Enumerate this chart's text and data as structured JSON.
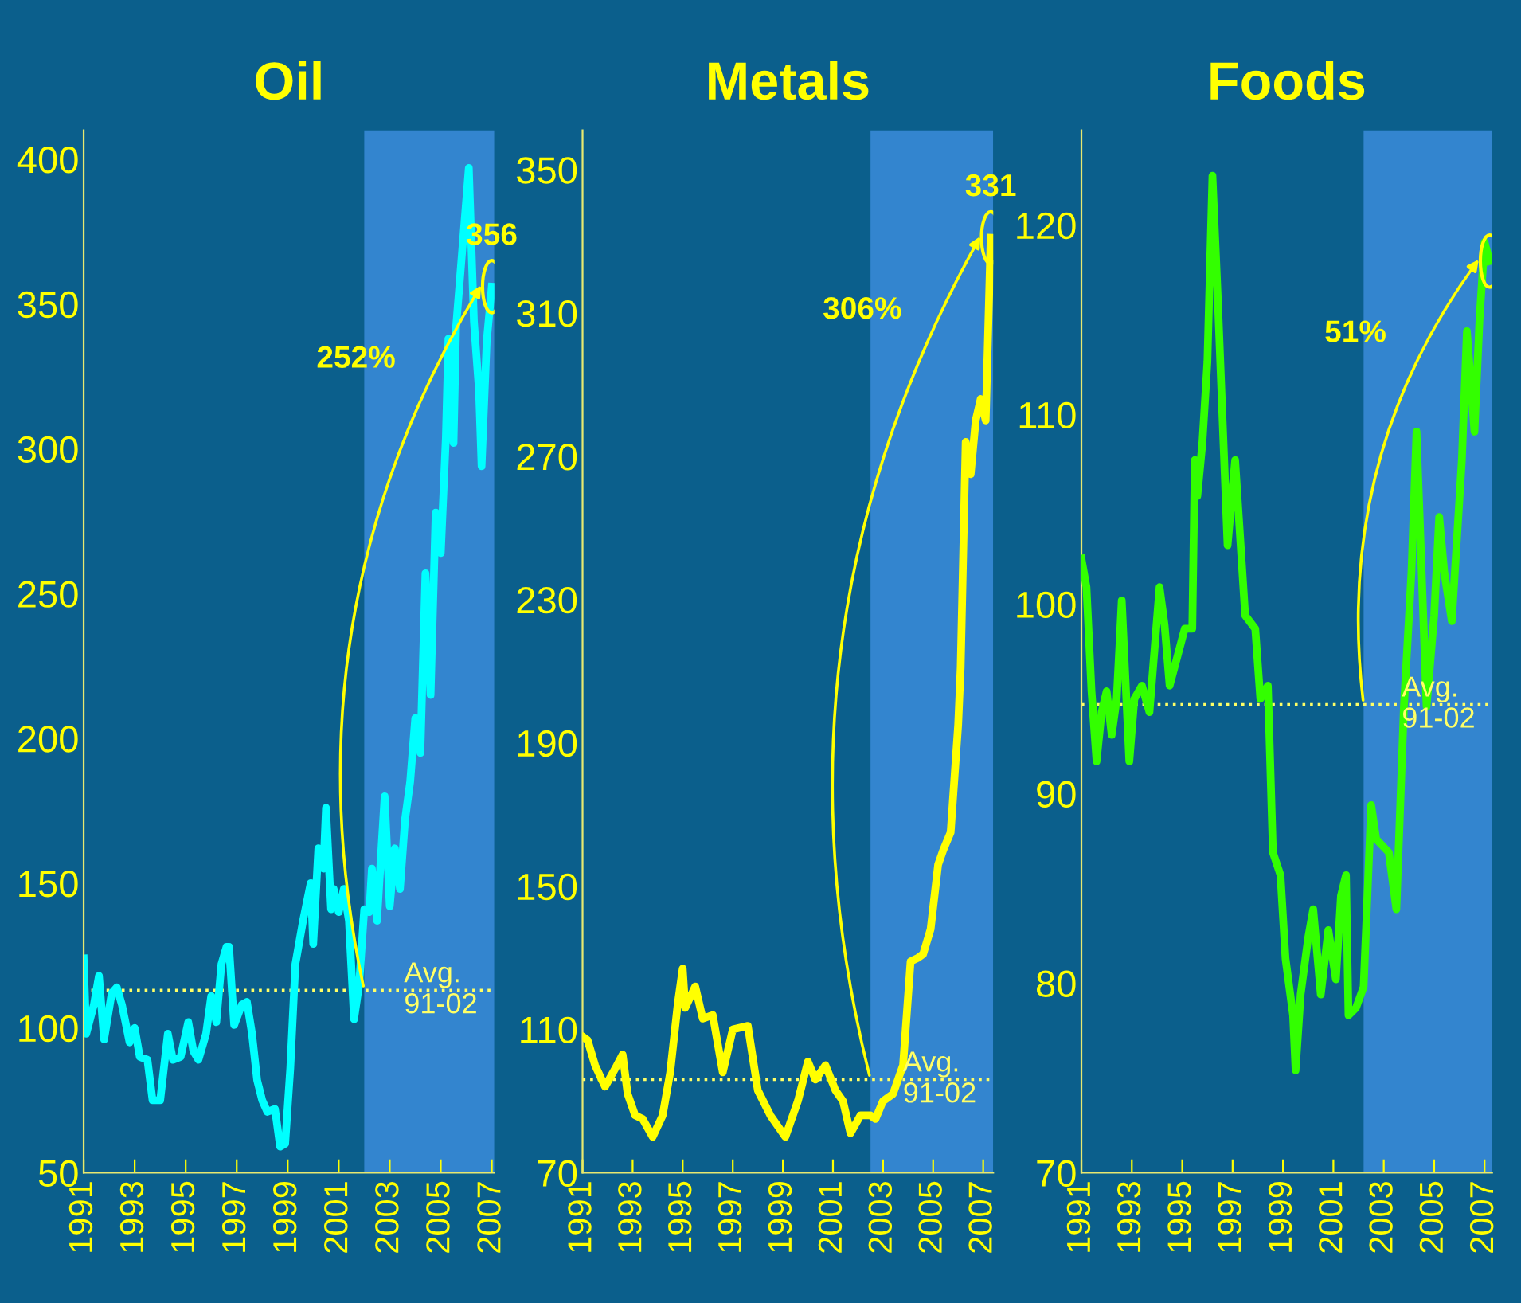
{
  "chart_data": [
    {
      "type": "line",
      "title": "Oil",
      "xlim": [
        1991,
        2007.1
      ],
      "ylim": [
        50,
        410
      ],
      "xticks": [
        1991,
        1993,
        1995,
        1997,
        1999,
        2001,
        2003,
        2005,
        2007
      ],
      "yticks": [
        50,
        100,
        150,
        200,
        250,
        300,
        350,
        400
      ],
      "x": [
        1991.0,
        1991.1,
        1991.4,
        1991.6,
        1991.8,
        1992.1,
        1992.3,
        1992.5,
        1992.8,
        1993.0,
        1993.2,
        1993.5,
        1993.7,
        1994.0,
        1994.3,
        1994.5,
        1994.8,
        1995.1,
        1995.3,
        1995.5,
        1995.8,
        1996.0,
        1996.2,
        1996.4,
        1996.6,
        1996.7,
        1996.9,
        1997.2,
        1997.4,
        1997.6,
        1997.8,
        1998.0,
        1998.2,
        1998.5,
        1998.7,
        1998.9,
        1999.1,
        1999.3,
        1999.6,
        1999.9,
        2000.0,
        2000.2,
        2000.4,
        2000.5,
        2000.7,
        2000.8,
        2001.0,
        2001.2,
        2001.4,
        2001.6,
        2001.8,
        2002.0,
        2002.2,
        2002.3,
        2002.5,
        2002.8,
        2003.0,
        2003.2,
        2003.4,
        2003.6,
        2003.8,
        2004.0,
        2004.2,
        2004.4,
        2004.6,
        2004.8,
        2005.0,
        2005.2,
        2005.3,
        2005.5,
        2005.6,
        2005.9,
        2006.1,
        2006.3,
        2006.5,
        2006.6,
        2006.8,
        2007.0
      ],
      "series": [
        {
          "color": "#00ffff",
          "values": [
            124,
            98,
            108,
            118,
            96,
            112,
            114,
            108,
            95,
            100,
            90,
            89,
            75,
            75,
            98,
            89,
            90,
            102,
            92,
            89,
            98,
            111,
            102,
            122,
            128,
            128,
            101,
            108,
            109,
            98,
            82,
            75,
            71,
            72,
            59,
            60,
            86,
            122,
            137,
            150,
            129,
            162,
            155,
            176,
            141,
            148,
            140,
            148,
            137,
            103,
            115,
            141,
            140,
            155,
            137,
            180,
            142,
            162,
            148,
            172,
            185,
            207,
            195,
            257,
            215,
            278,
            264,
            304,
            338,
            302,
            342,
            375,
            397,
            344,
            320,
            294,
            337,
            356
          ]
        }
      ],
      "bands": [
        {
          "axis": "x",
          "from": 2002.0,
          "to": 2007.1,
          "color": "#3d8fe0"
        }
      ],
      "ref_lines": [
        {
          "axis": "y",
          "value": 113,
          "label": "Avg.\n91-02",
          "color": "#ffff66",
          "line_style": "dotted"
        }
      ],
      "annotations": [
        {
          "text": "356",
          "x": 2007.0,
          "y": 356
        },
        "252%"
      ]
    },
    {
      "type": "line",
      "title": "Metals",
      "xlim": [
        1991,
        2007.4
      ],
      "ylim": [
        70,
        361
      ],
      "xticks": [
        1991,
        1993,
        1995,
        1997,
        1999,
        2001,
        2003,
        2005,
        2007
      ],
      "yticks": [
        70,
        110,
        150,
        190,
        230,
        270,
        310,
        350
      ],
      "x": [
        1991.0,
        1991.2,
        1991.5,
        1991.9,
        1992.3,
        1992.6,
        1992.8,
        1993.1,
        1993.4,
        1993.8,
        1994.2,
        1994.5,
        1994.8,
        1995.0,
        1995.1,
        1995.5,
        1995.8,
        1996.2,
        1996.6,
        1997.0,
        1997.6,
        1998.0,
        1998.5,
        1999.1,
        1999.6,
        2000.0,
        2000.3,
        2000.7,
        2001.1,
        2001.4,
        2001.7,
        2002.1,
        2002.5,
        2002.7,
        2003.0,
        2003.4,
        2003.8,
        2004.1,
        2004.4,
        2004.6,
        2004.9,
        2005.2,
        2005.4,
        2005.7,
        2006.0,
        2006.1,
        2006.3,
        2006.5,
        2006.7,
        2006.9,
        2007.1,
        2007.3
      ],
      "series": [
        {
          "color": "#ffff00",
          "values": [
            108,
            107,
            100,
            94,
            99,
            103,
            92,
            86,
            85,
            80,
            86,
            98,
            117,
            127,
            116,
            122,
            113,
            114,
            98,
            110,
            111,
            93,
            86,
            80,
            90,
            101,
            96,
            100,
            93,
            90,
            81,
            86,
            86,
            85,
            90,
            92,
            100,
            129,
            130,
            131,
            138,
            156,
            160,
            165,
            195,
            211,
            274,
            265,
            280,
            286,
            280,
            331
          ]
        }
      ],
      "bands": [
        {
          "axis": "x",
          "from": 2002.5,
          "to": 2007.4,
          "color": "#3d8fe0"
        }
      ],
      "ref_lines": [
        {
          "axis": "y",
          "value": 96,
          "label": "Avg.\n91-02",
          "color": "#ffff66",
          "line_style": "dotted"
        }
      ],
      "annotations": [
        {
          "text": "331",
          "x": 2007.3,
          "y": 331
        },
        "306%"
      ]
    },
    {
      "type": "line",
      "title": "Foods",
      "xlim": [
        1991,
        2007.3
      ],
      "ylim": [
        70,
        125
      ],
      "xticks": [
        1991,
        1993,
        1995,
        1997,
        1999,
        2001,
        2003,
        2005,
        2007
      ],
      "yticks": [
        70,
        80,
        90,
        100,
        110,
        120
      ],
      "x": [
        1991.0,
        1991.2,
        1991.4,
        1991.6,
        1991.8,
        1992.0,
        1992.2,
        1992.4,
        1992.6,
        1992.9,
        1993.1,
        1993.4,
        1993.7,
        1994.1,
        1994.3,
        1994.5,
        1994.8,
        1995.1,
        1995.4,
        1995.5,
        1995.6,
        1995.8,
        1996.0,
        1996.2,
        1996.4,
        1996.8,
        1997.1,
        1997.5,
        1997.9,
        1998.1,
        1998.4,
        1998.6,
        1998.9,
        1999.1,
        1999.4,
        1999.5,
        1999.7,
        2000.0,
        2000.2,
        2000.5,
        2000.8,
        2001.1,
        2001.3,
        2001.5,
        2001.6,
        2001.9,
        2002.2,
        2002.5,
        2002.7,
        2003.2,
        2003.5,
        2003.8,
        2004.1,
        2004.3,
        2004.7,
        2005.0,
        2005.2,
        2005.4,
        2005.7,
        2006.1,
        2006.3,
        2006.6,
        2006.8,
        2007.0,
        2007.2
      ],
      "series": [
        {
          "color": "#33ff00",
          "values": [
            102.4,
            100.9,
            95.4,
            91.7,
            94.3,
            95.4,
            93.1,
            95,
            100.2,
            91.7,
            95,
            95.7,
            94.3,
            100.9,
            98.9,
            95.7,
            97.2,
            98.7,
            98.7,
            107.6,
            105.7,
            108.5,
            112.8,
            122.6,
            116.5,
            103.1,
            107.6,
            99.4,
            98.7,
            95,
            95.7,
            86.9,
            85.7,
            81.3,
            78.3,
            75.4,
            79.4,
            82.4,
            83.9,
            79.4,
            82.8,
            80.2,
            84.6,
            85.7,
            78.3,
            78.7,
            79.8,
            89.4,
            87.6,
            86.9,
            83.9,
            94.6,
            101.7,
            109.1,
            94.6,
            99.4,
            104.6,
            101.7,
            99.1,
            107.6,
            114.4,
            109.1,
            115,
            119.1,
            118.1
          ]
        }
      ],
      "bands": [
        {
          "axis": "x",
          "from": 2002.2,
          "to": 2007.3,
          "color": "#3d8fe0"
        }
      ],
      "ref_lines": [
        {
          "axis": "y",
          "value": 94.7,
          "label": "Avg.\n91-02",
          "color": "#ffff66",
          "line_style": "dotted"
        }
      ],
      "annotations": [
        "51%"
      ]
    }
  ]
}
